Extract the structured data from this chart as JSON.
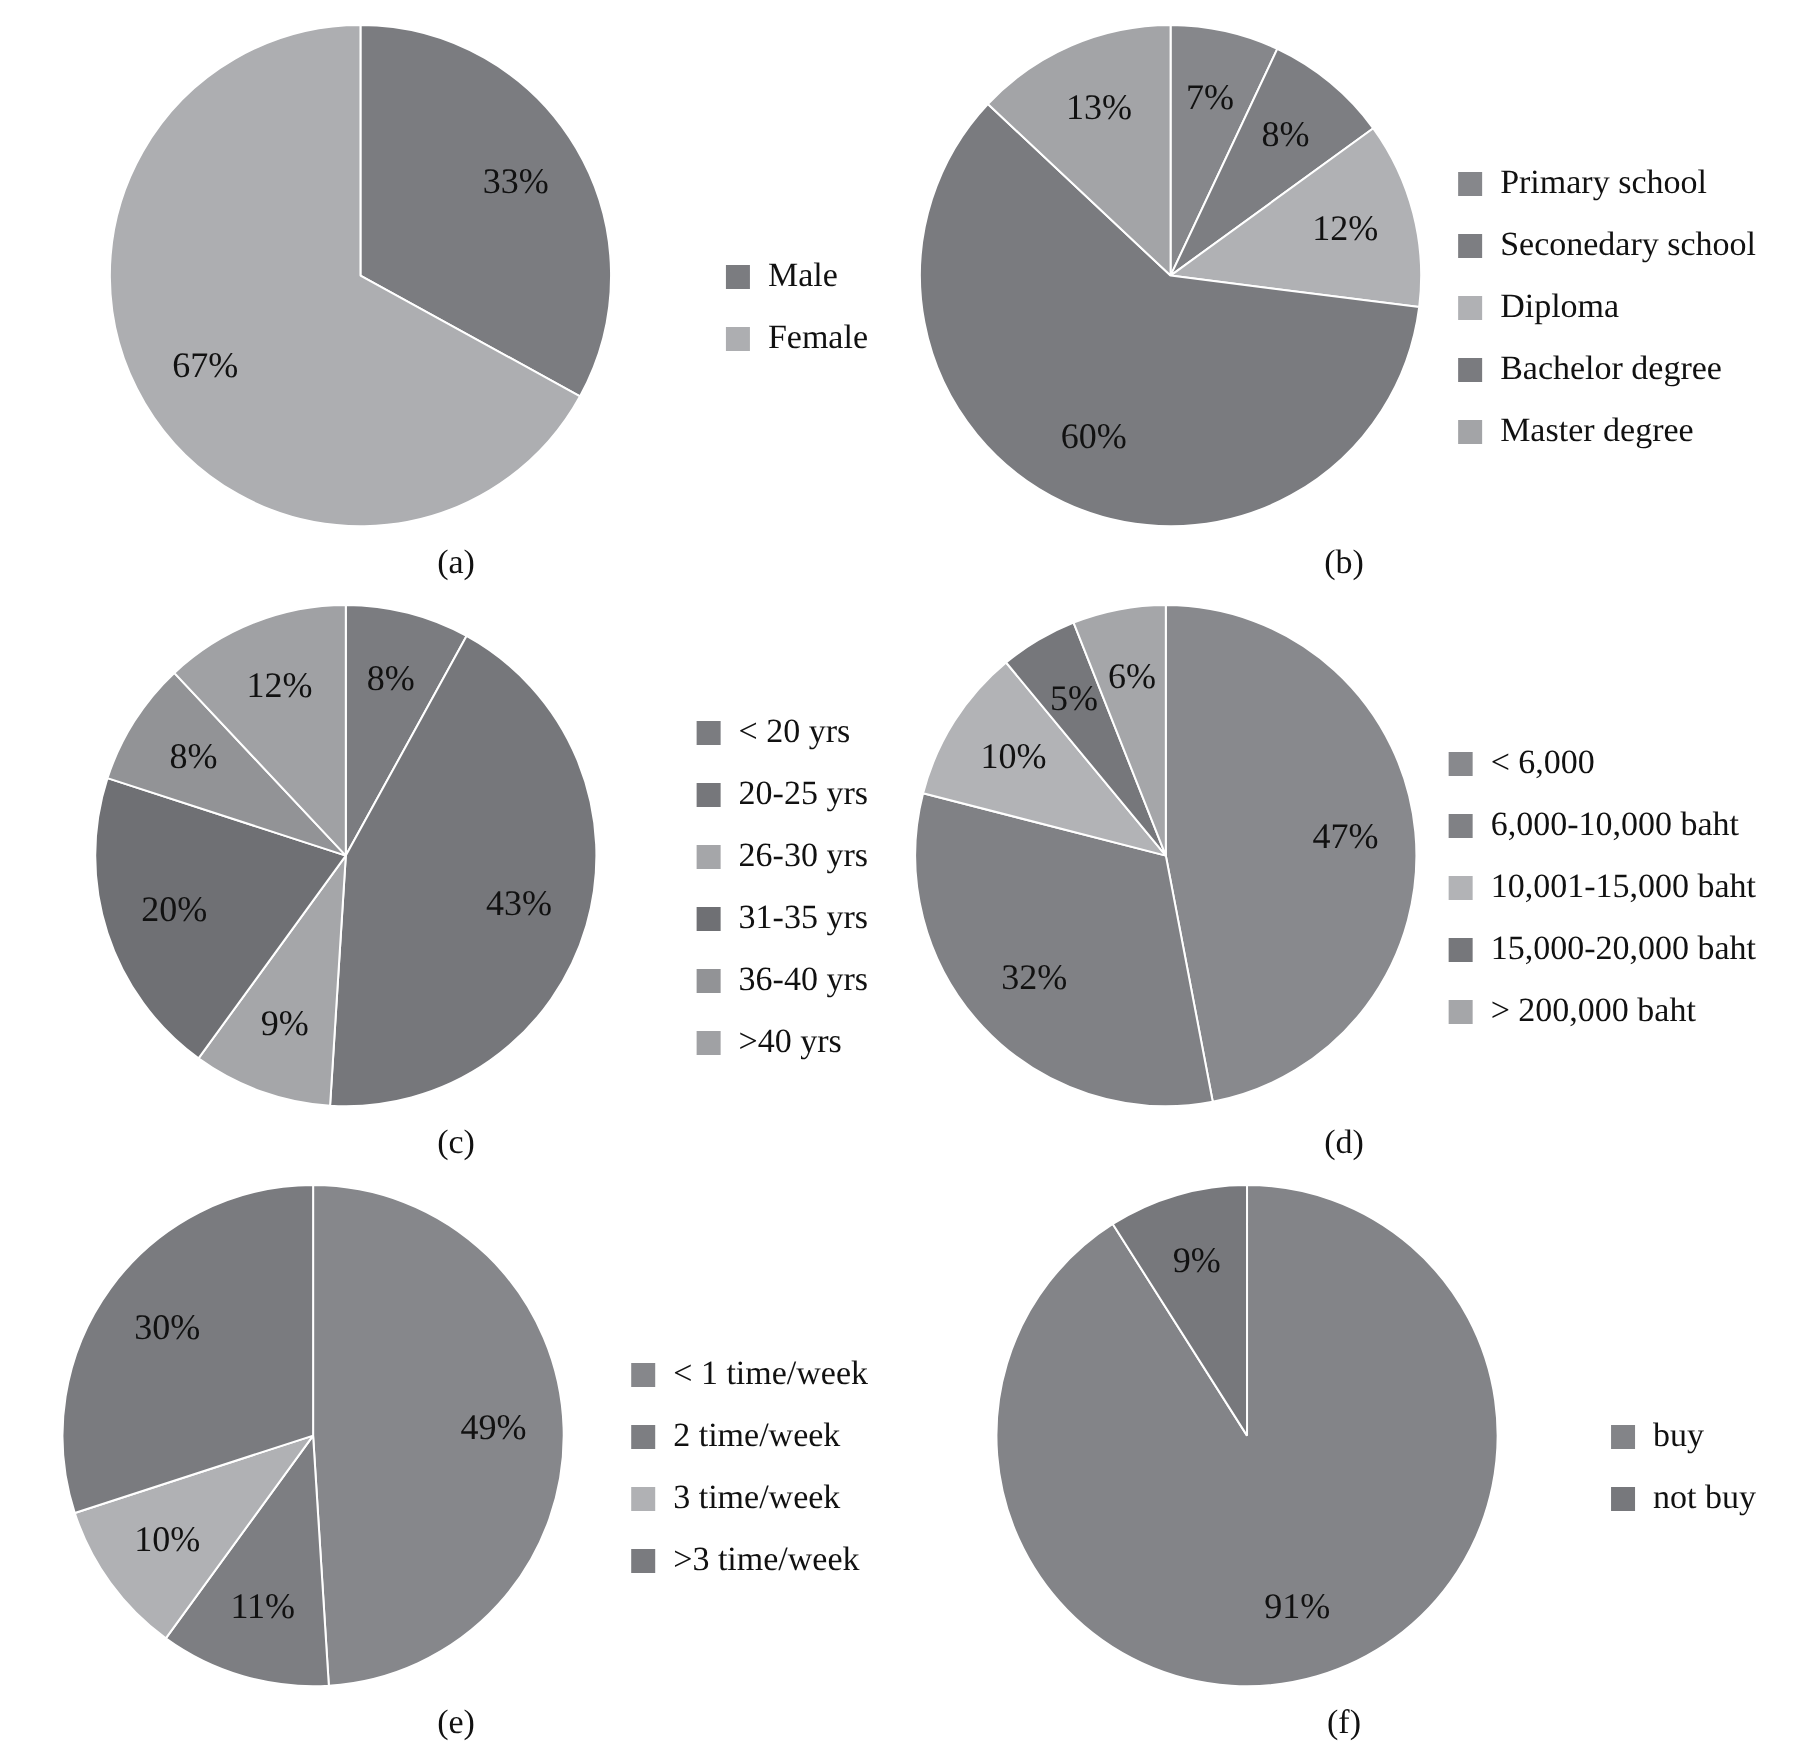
{
  "chart_data": [
    {
      "type": "pie",
      "title": "(a)",
      "legend": "right",
      "categories": [
        "Male",
        "Female"
      ],
      "values": [
        33,
        67
      ],
      "value_labels": [
        "33%",
        "67%"
      ],
      "colors": [
        "#7b7c80",
        "#adaeb1"
      ]
    },
    {
      "type": "pie",
      "title": "(b)",
      "legend": "right",
      "categories": [
        "Primary school",
        "Seconedary school",
        "Diploma",
        "Bachelor degree",
        "Master degree"
      ],
      "values": [
        7,
        8,
        12,
        60,
        13
      ],
      "value_labels": [
        "7%",
        "8%",
        "12%",
        "60%",
        "13%"
      ],
      "colors": [
        "#86878b",
        "#7d7e82",
        "#b0b1b4",
        "#7a7b7f",
        "#a3a4a7"
      ]
    },
    {
      "type": "pie",
      "title": "(c)",
      "legend": "right",
      "categories": [
        "< 20 yrs",
        "20-25 yrs",
        "26-30 yrs",
        "31-35 yrs",
        "36-40 yrs",
        ">40 yrs"
      ],
      "values": [
        8,
        43,
        9,
        20,
        8,
        12
      ],
      "value_labels": [
        "8%",
        "43%",
        "9%",
        "20%",
        "8%",
        "12%"
      ],
      "colors": [
        "#7b7c80",
        "#76777b",
        "#a5a6a9",
        "#6f7074",
        "#929396",
        "#a0a1a4"
      ]
    },
    {
      "type": "pie",
      "title": "(d)",
      "legend": "right",
      "categories": [
        "< 6,000",
        "6,000-10,000 baht",
        "10,001-15,000 baht",
        "15,000-20,000 baht",
        "> 200,000 baht"
      ],
      "values": [
        47,
        32,
        10,
        5,
        6
      ],
      "value_labels": [
        "47%",
        "32%",
        "10%",
        "5%",
        "6%"
      ],
      "colors": [
        "#88898d",
        "#808185",
        "#b2b3b6",
        "#76777b",
        "#a5a6a9"
      ]
    },
    {
      "type": "pie",
      "title": "(e)",
      "legend": "right",
      "categories": [
        "< 1 time/week",
        "2 time/week",
        "3 time/week",
        ">3 time/week"
      ],
      "values": [
        49,
        11,
        10,
        30
      ],
      "value_labels": [
        "49%",
        "11%",
        "10%",
        "30%"
      ],
      "colors": [
        "#86878b",
        "#7d7e82",
        "#b0b1b4",
        "#7a7b7f"
      ]
    },
    {
      "type": "pie",
      "title": "(f)",
      "legend": "right",
      "categories": [
        "buy",
        "not buy"
      ],
      "values": [
        91,
        9
      ],
      "value_labels": [
        "91%",
        "9%"
      ],
      "colors": [
        "#838488",
        "#77787c"
      ]
    }
  ]
}
